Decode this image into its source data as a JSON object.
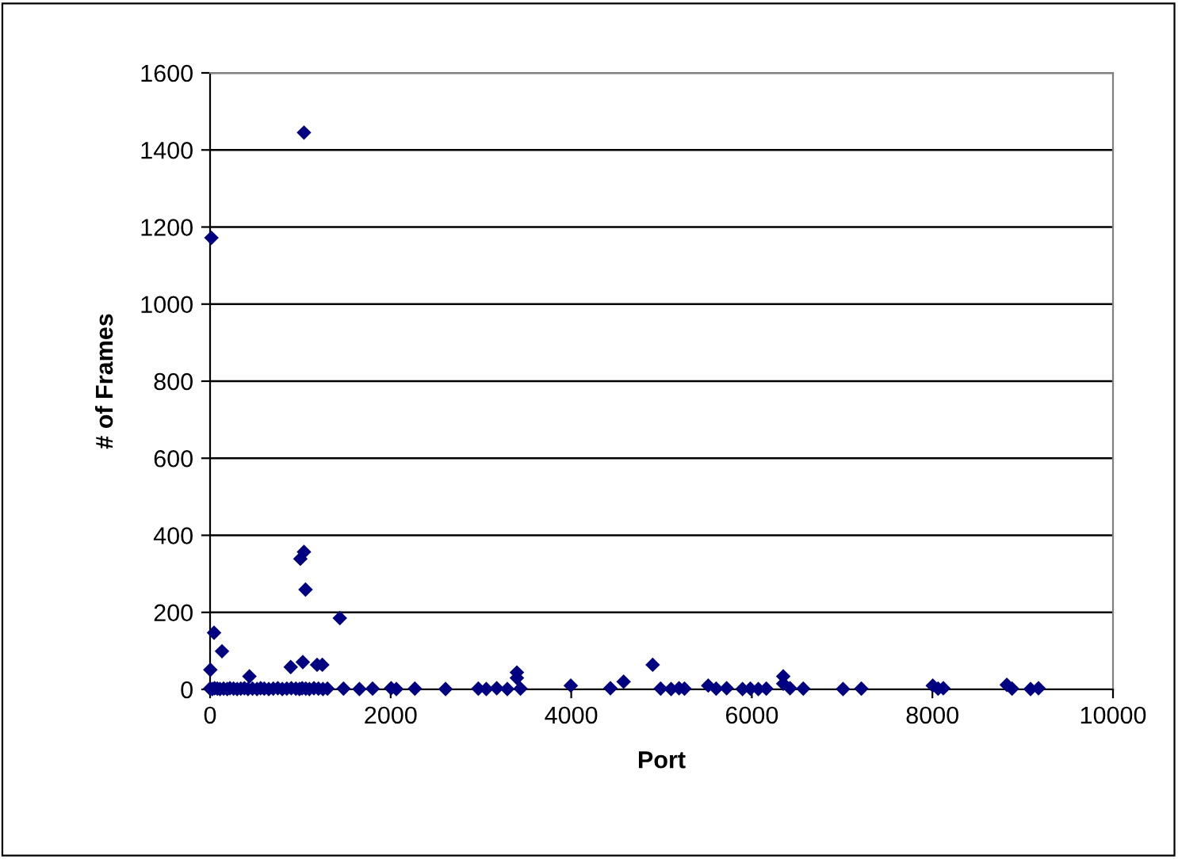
{
  "chart_data": {
    "type": "scatter",
    "xlabel": "Port",
    "ylabel": "# of Frames",
    "x": [
      15,
      1040,
      1040,
      1000,
      1057,
      1437,
      44,
      132,
      3,
      893,
      1027,
      1185,
      1243,
      436,
      3398,
      3398,
      4902,
      4580,
      4434,
      6348,
      6348,
      0,
      25,
      50,
      80,
      110,
      150,
      190,
      220,
      260,
      300,
      340,
      380,
      420,
      470,
      520,
      560,
      600,
      650,
      700,
      750,
      800,
      850,
      900,
      950,
      990,
      1020,
      1060,
      1100,
      1150,
      1200,
      1250,
      1300,
      1478,
      1654,
      1800,
      2005,
      2063,
      2268,
      2608,
      2971,
      3059,
      3175,
      3292,
      3438,
      3995,
      4990,
      5106,
      5194,
      5254,
      5517,
      5605,
      5721,
      5897,
      5984,
      6072,
      6160,
      6423,
      6570,
      7010,
      7213,
      8004,
      8063,
      8121,
      8824,
      8882,
      9087,
      9175
    ],
    "values": [
      1172,
      1445,
      357,
      339,
      259,
      185,
      147,
      99,
      51,
      58,
      71,
      64,
      64,
      34,
      44,
      30,
      64,
      20,
      3,
      34,
      15,
      2,
      1,
      3,
      2,
      1,
      2,
      1,
      3,
      2,
      1,
      2,
      3,
      1,
      2,
      1,
      3,
      2,
      1,
      2,
      3,
      1,
      2,
      3,
      2,
      1,
      3,
      2,
      1,
      3,
      2,
      1,
      2,
      2,
      1,
      2,
      3,
      1,
      2,
      1,
      2,
      1,
      3,
      1,
      2,
      10,
      2,
      1,
      3,
      2,
      10,
      2,
      3,
      1,
      2,
      1,
      2,
      3,
      2,
      1,
      2,
      10,
      2,
      3,
      12,
      2,
      1,
      3
    ],
    "color": "#000080",
    "marker": "diamond",
    "xlim": [
      0,
      10000
    ],
    "xticks": [
      0,
      2000,
      4000,
      6000,
      8000,
      10000
    ],
    "ylim": [
      0,
      1600
    ],
    "yticks": [
      0,
      200,
      400,
      600,
      800,
      1000,
      1200,
      1400,
      1600
    ],
    "grid": "y",
    "legend": false
  }
}
